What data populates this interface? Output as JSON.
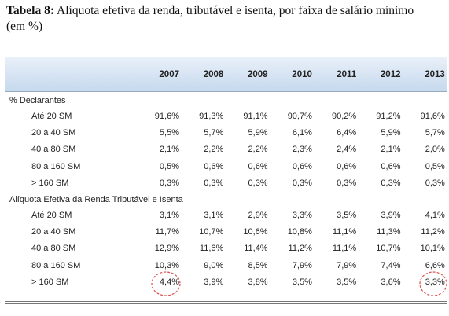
{
  "title": {
    "label": "Tabela 8:",
    "text": "Alíquota efetiva da renda, tributável e isenta, por faixa de salário mínimo (em %)"
  },
  "table": {
    "years": [
      "2007",
      "2008",
      "2009",
      "2010",
      "2011",
      "2012",
      "2013"
    ],
    "sections": [
      {
        "title": "% Declarantes",
        "rows": [
          {
            "label": "Até 20 SM",
            "values": [
              "91,6%",
              "91,3%",
              "91,1%",
              "90,7%",
              "90,2%",
              "91,2%",
              "91,6%"
            ]
          },
          {
            "label": "20 a 40 SM",
            "values": [
              "5,5%",
              "5,7%",
              "5,9%",
              "6,1%",
              "6,4%",
              "5,9%",
              "5,7%"
            ]
          },
          {
            "label": "40 a 80 SM",
            "values": [
              "2,1%",
              "2,2%",
              "2,2%",
              "2,3%",
              "2,4%",
              "2,1%",
              "2,0%"
            ]
          },
          {
            "label": "80 a 160 SM",
            "values": [
              "0,5%",
              "0,6%",
              "0,6%",
              "0,6%",
              "0,6%",
              "0,6%",
              "0,5%"
            ]
          },
          {
            "label": "> 160 SM",
            "values": [
              "0,3%",
              "0,3%",
              "0,3%",
              "0,3%",
              "0,3%",
              "0,3%",
              "0,3%"
            ]
          }
        ]
      },
      {
        "title": "Alíquota Efetiva da Renda Tributável e Isenta",
        "rows": [
          {
            "label": "Até 20 SM",
            "values": [
              "3,1%",
              "3,1%",
              "2,9%",
              "3,3%",
              "3,5%",
              "3,9%",
              "4,1%"
            ]
          },
          {
            "label": "20 a 40 SM",
            "values": [
              "11,7%",
              "10,7%",
              "10,6%",
              "10,8%",
              "11,1%",
              "11,3%",
              "11,2%"
            ]
          },
          {
            "label": "40 a 80 SM",
            "values": [
              "12,9%",
              "11,6%",
              "11,4%",
              "11,2%",
              "11,1%",
              "10,7%",
              "10,1%"
            ]
          },
          {
            "label": "80 a 160 SM",
            "values": [
              "10,3%",
              "9,0%",
              "8,5%",
              "7,9%",
              "7,9%",
              "7,4%",
              "6,6%"
            ]
          },
          {
            "label": "> 160 SM",
            "values": [
              "4,4%",
              "3,9%",
              "3,8%",
              "3,5%",
              "3,5%",
              "3,6%",
              "3,3%"
            ]
          }
        ]
      }
    ]
  }
}
